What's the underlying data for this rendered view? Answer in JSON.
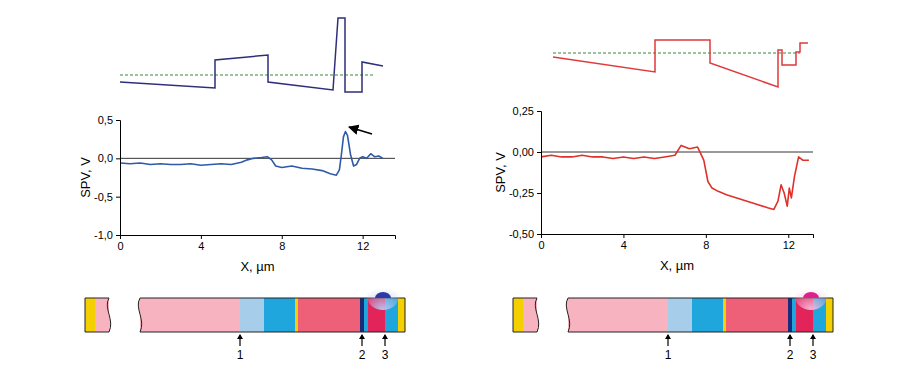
{
  "chart_data": [
    {
      "type": "line",
      "x_label": "X, µm",
      "y_label": "SPV, V",
      "x": [
        0,
        0.5,
        1,
        1.5,
        2,
        2.5,
        3,
        3.5,
        4,
        4.5,
        5,
        5.5,
        6,
        6.3,
        6.6,
        7,
        7.3,
        7.5,
        7.7,
        8,
        8.5,
        9,
        9.5,
        10,
        10.4,
        10.7,
        10.85,
        10.95,
        11.05,
        11.15,
        11.25,
        11.4,
        11.55,
        11.7,
        11.85,
        12,
        12.2,
        12.4,
        12.6,
        12.8,
        13
      ],
      "series": [
        {
          "color": "#2f5aa8",
          "values": [
            -0.06,
            -0.07,
            -0.06,
            -0.08,
            -0.07,
            -0.08,
            -0.08,
            -0.07,
            -0.09,
            -0.08,
            -0.07,
            -0.08,
            -0.05,
            -0.02,
            0.0,
            0.01,
            0.02,
            -0.02,
            -0.1,
            -0.12,
            -0.1,
            -0.13,
            -0.14,
            -0.16,
            -0.2,
            -0.22,
            -0.15,
            0.05,
            0.28,
            0.35,
            0.3,
            0.05,
            -0.1,
            -0.08,
            0.0,
            0.02,
            0.0,
            0.06,
            0.02,
            0.03,
            0.0
          ]
        }
      ],
      "xlim": [
        0,
        13.6
      ],
      "ylim": [
        -1.0,
        0.5
      ],
      "xticks": [
        0,
        4,
        8,
        12
      ],
      "yticks": [
        {
          "value": -1.0,
          "label": "-1,0"
        },
        {
          "value": -0.5,
          "label": "-0,5"
        },
        {
          "value": 0.0,
          "label": "0,0"
        },
        {
          "value": 0.5,
          "label": "0,5"
        }
      ],
      "annotations": [
        "1",
        "2",
        "3"
      ]
    },
    {
      "type": "line",
      "x_label": "X, µm",
      "y_label": "SPV, V",
      "x": [
        0,
        0.5,
        1,
        1.5,
        2,
        2.5,
        3,
        3.5,
        4,
        4.5,
        5,
        5.5,
        6,
        6.5,
        6.8,
        7.2,
        7.6,
        7.9,
        8.1,
        8.3,
        8.6,
        9,
        9.5,
        10,
        10.5,
        11,
        11.3,
        11.5,
        11.65,
        11.8,
        11.95,
        12.05,
        12.15,
        12.3,
        12.5,
        12.7,
        13
      ],
      "series": [
        {
          "color": "#e0302a",
          "values": [
            -0.03,
            -0.02,
            -0.03,
            -0.03,
            -0.02,
            -0.03,
            -0.03,
            -0.04,
            -0.03,
            -0.04,
            -0.03,
            -0.04,
            -0.03,
            -0.02,
            0.04,
            0.02,
            0.03,
            -0.05,
            -0.18,
            -0.22,
            -0.24,
            -0.26,
            -0.28,
            -0.3,
            -0.32,
            -0.34,
            -0.35,
            -0.3,
            -0.2,
            -0.25,
            -0.33,
            -0.22,
            -0.28,
            -0.15,
            -0.03,
            -0.05,
            -0.05
          ]
        }
      ],
      "xlim": [
        0,
        13.2
      ],
      "ylim": [
        -0.5,
        0.25
      ],
      "xticks": [
        0,
        4,
        8,
        12
      ],
      "yticks": [
        {
          "value": -0.5,
          "label": "-0,50"
        },
        {
          "value": -0.25,
          "label": "-0,25"
        },
        {
          "value": 0.0,
          "label": "0,00"
        },
        {
          "value": 0.25,
          "label": "0,25"
        }
      ],
      "annotations": [
        "1",
        "2",
        "3"
      ]
    }
  ]
}
